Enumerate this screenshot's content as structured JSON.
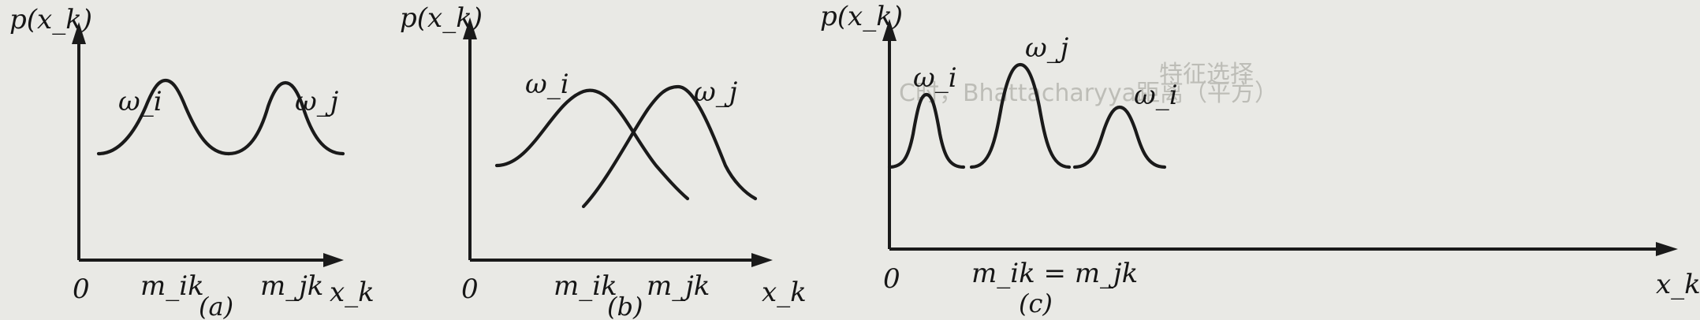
{
  "panels": [
    {
      "caption": "(a)",
      "y_label": "p(x_k)",
      "x_label": "x_k",
      "origin": "0",
      "curves": [
        {
          "label": "ω_i",
          "mean_label": "m_ik"
        },
        {
          "label": "ω_j",
          "mean_label": "m_jk"
        }
      ]
    },
    {
      "caption": "(b)",
      "y_label": "p(x_k)",
      "x_label": "x_k",
      "origin": "0",
      "curves": [
        {
          "label": "ω_i",
          "mean_label": "m_ik"
        },
        {
          "label": "ω_j",
          "mean_label": "m_jk"
        }
      ]
    },
    {
      "caption": "(c)",
      "y_label": "p(x_k)",
      "x_label": "x_k",
      "origin": "0",
      "mean_label": "m_ik = m_jk",
      "curves": [
        {
          "label": "ω_i"
        },
        {
          "label": "ω_j"
        },
        {
          "label": "ω_i"
        }
      ]
    }
  ],
  "background_text": [
    "C时，Bhattacharyya距离（平方）",
    "特征选择"
  ]
}
